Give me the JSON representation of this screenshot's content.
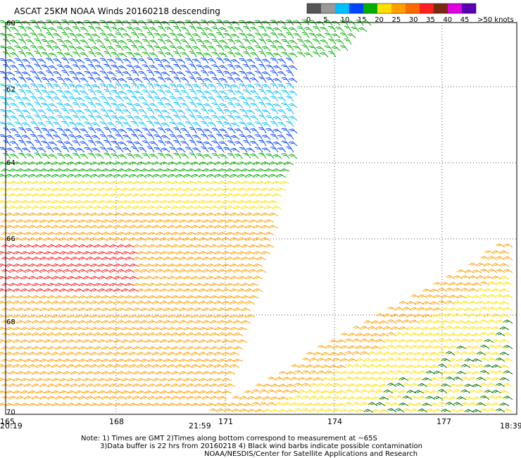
{
  "title": "ASCAT 25KM NOAA Winds 20160218 descending",
  "legend": {
    "labels": [
      "0",
      "5",
      "10",
      "15",
      "20",
      "25",
      "30",
      "35",
      "40",
      "45",
      ">50 knots"
    ],
    "colors": [
      "#555555",
      "#999999",
      "#00bfff",
      "#0044ff",
      "#00b000",
      "#ffe000",
      "#ffa000",
      "#ff6a00",
      "#ff2020",
      "#7a2a10",
      "#e000e0",
      "#5a00b0"
    ]
  },
  "axes": {
    "lat_labels": [
      "60",
      "62",
      "64",
      "66",
      "68",
      "70"
    ],
    "lon_labels": [
      "165",
      "168",
      "171",
      "174",
      "177"
    ]
  },
  "times": {
    "left": "20:19",
    "middle": "21:59",
    "right": "18:39",
    "left_color": "#800080",
    "middle_color": "#800080",
    "right_color": "#800080"
  },
  "notes": {
    "line1": "Note: 1) Times are GMT 2)Times along bottom correspond to measurement at ~65S",
    "line2": "3)Data buffer is 22 hrs from 20160218 4) Black wind barbs indicate possible contamination",
    "line3": "NOAA/NESDIS/Center for Satellite Applications and Research"
  },
  "wind_color_bands": [
    {
      "lat": "60-61",
      "color": "#00b000"
    },
    {
      "lat": "61-62",
      "color": "#0044ff"
    },
    {
      "lat": "62-63",
      "color": "#00bfff"
    },
    {
      "lat": "63-64",
      "color": "#0044ff"
    },
    {
      "lat": "64",
      "color": "#00b000"
    },
    {
      "lat": "64-65",
      "color": "#ffe000"
    },
    {
      "lat": "65-66",
      "color": "#ffa000"
    },
    {
      "lat": "66-67",
      "color": "#ff2020"
    },
    {
      "lat": "67-70",
      "color": "#ffa000"
    }
  ]
}
